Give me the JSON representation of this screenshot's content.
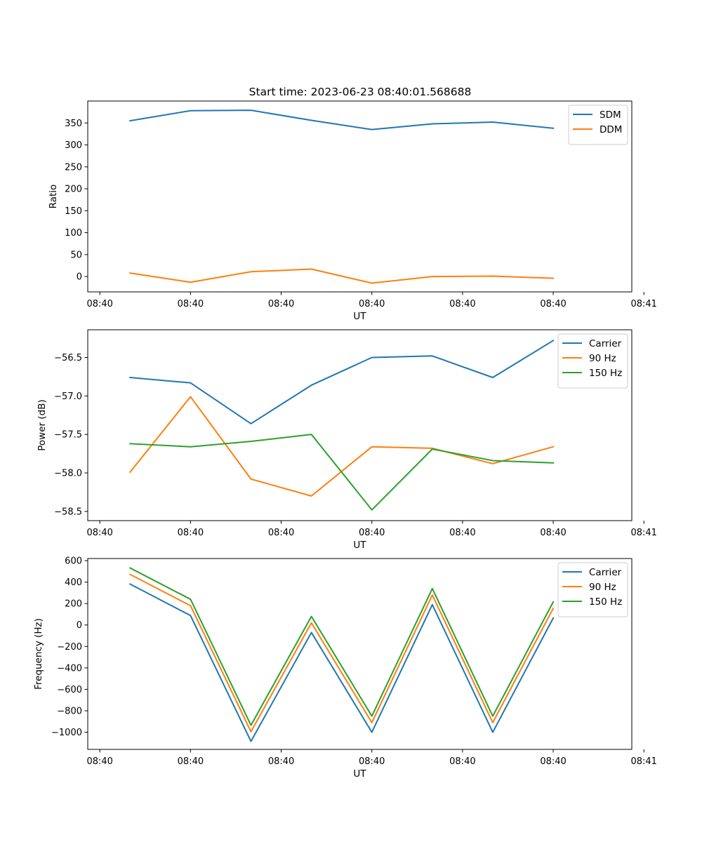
{
  "figure": {
    "title": "Start time: 2023-06-23 08:40:01.568688"
  },
  "colors": {
    "blue": "#1f77b4",
    "orange": "#ff7f0e",
    "green": "#2ca02c"
  },
  "chart_data": [
    {
      "type": "line",
      "title": "Start time: 2023-06-23 08:40:01.568688",
      "xlabel": "UT",
      "ylabel": "Ratio",
      "x": [
        1,
        2,
        3,
        4,
        5,
        6,
        7,
        8
      ],
      "xlim": [
        0.3,
        9.3
      ],
      "xticks": [
        0.5,
        2,
        3.5,
        5,
        6.5,
        8,
        9.5
      ],
      "xtick_labels": [
        "08:40",
        "08:40",
        "08:40",
        "08:40",
        "08:40",
        "08:40",
        "08:41"
      ],
      "ylim": [
        -35,
        400
      ],
      "yticks": [
        0,
        50,
        100,
        150,
        200,
        250,
        300,
        350
      ],
      "ytick_labels": [
        "0",
        "50",
        "100",
        "150",
        "200",
        "250",
        "300",
        "350"
      ],
      "legend": "top-right",
      "grid": false,
      "series": [
        {
          "name": "SDM",
          "color": "#1f77b4",
          "values": [
            355,
            378,
            379,
            356,
            335,
            348,
            352,
            338
          ]
        },
        {
          "name": "DDM",
          "color": "#ff7f0e",
          "values": [
            8,
            -13,
            11,
            17,
            -15,
            0,
            1,
            -4
          ]
        }
      ]
    },
    {
      "type": "line",
      "title": "",
      "xlabel": "UT",
      "ylabel": "Power (dB)",
      "x": [
        1,
        2,
        3,
        4,
        5,
        6,
        7,
        8
      ],
      "xlim": [
        0.3,
        9.3
      ],
      "xticks": [
        0.5,
        2,
        3.5,
        5,
        6.5,
        8,
        9.5
      ],
      "xtick_labels": [
        "08:40",
        "08:40",
        "08:40",
        "08:40",
        "08:40",
        "08:40",
        "08:41"
      ],
      "ylim": [
        -58.62,
        -56.14
      ],
      "yticks": [
        -58.5,
        -58.0,
        -57.5,
        -57.0,
        -56.5
      ],
      "ytick_labels": [
        "−58.5",
        "−58.0",
        "−57.5",
        "−57.0",
        "−56.5"
      ],
      "legend": "top-right",
      "grid": false,
      "series": [
        {
          "name": "Carrier",
          "color": "#1f77b4",
          "values": [
            -56.76,
            -56.83,
            -57.36,
            -56.86,
            -56.5,
            -56.48,
            -56.76,
            -56.28
          ]
        },
        {
          "name": "90 Hz",
          "color": "#ff7f0e",
          "values": [
            -57.99,
            -57.01,
            -58.08,
            -58.3,
            -57.66,
            -57.68,
            -57.88,
            -57.66
          ]
        },
        {
          "name": "150 Hz",
          "color": "#2ca02c",
          "values": [
            -57.62,
            -57.66,
            -57.59,
            -57.5,
            -58.48,
            -57.69,
            -57.84,
            -57.87
          ]
        }
      ]
    },
    {
      "type": "line",
      "title": "",
      "xlabel": "UT",
      "ylabel": "Frequency (Hz)",
      "x": [
        1,
        2,
        3,
        4,
        5,
        6,
        7,
        8
      ],
      "xlim": [
        0.3,
        9.3
      ],
      "xticks": [
        0.5,
        2,
        3.5,
        5,
        6.5,
        8,
        9.5
      ],
      "xtick_labels": [
        "08:40",
        "08:40",
        "08:40",
        "08:40",
        "08:40",
        "08:40",
        "08:41"
      ],
      "ylim": [
        -1160,
        620
      ],
      "yticks": [
        -1000,
        -800,
        -600,
        -400,
        -200,
        0,
        200,
        400,
        600
      ],
      "ytick_labels": [
        "−1000",
        "−800",
        "−600",
        "−400",
        "−200",
        "0",
        "200",
        "400",
        "600"
      ],
      "legend": "top-right",
      "grid": false,
      "series": [
        {
          "name": "Carrier",
          "color": "#1f77b4",
          "values": [
            382,
            88,
            -1085,
            -70,
            -1000,
            190,
            -1000,
            65
          ]
        },
        {
          "name": "90 Hz",
          "color": "#ff7f0e",
          "values": [
            472,
            180,
            -995,
            20,
            -910,
            280,
            -910,
            155
          ]
        },
        {
          "name": "150 Hz",
          "color": "#2ca02c",
          "values": [
            532,
            240,
            -935,
            80,
            -850,
            340,
            -850,
            215
          ]
        }
      ]
    }
  ]
}
